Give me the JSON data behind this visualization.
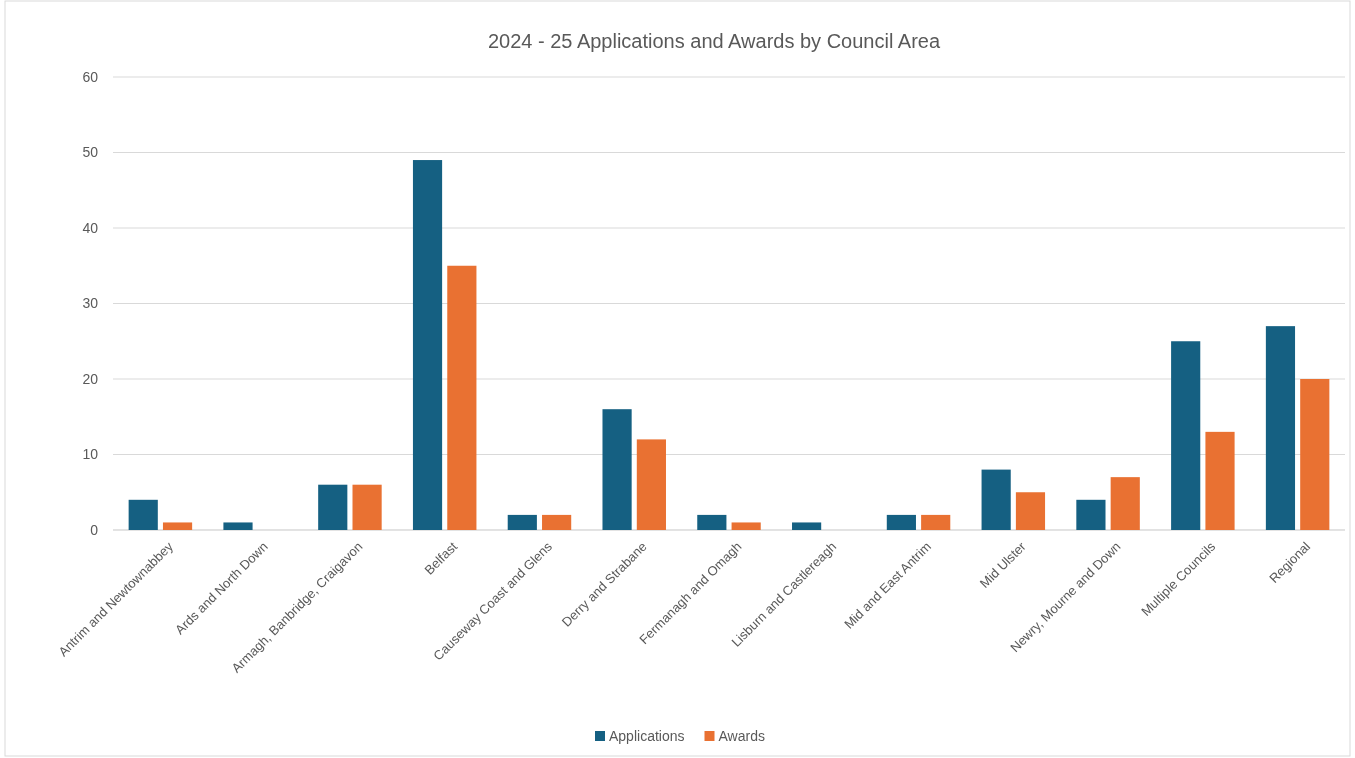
{
  "chart_data": {
    "type": "bar",
    "title": "2024 - 25 Applications and Awards by Council Area",
    "categories": [
      "Antrim and Newtownabbey",
      "Ards and North Down",
      "Armagh, Banbridge, Craigavon",
      "Belfast",
      "Causeway Coast and Glens",
      "Derry and Strabane",
      "Fermanagh and Omagh",
      "Lisburn and Castlereagh",
      "Mid and East Antrim",
      "Mid Ulster",
      "Newry, Mourne and Down",
      "Multiple Councils",
      "Regional"
    ],
    "series": [
      {
        "name": "Applications",
        "color": "#156082",
        "values": [
          4,
          1,
          6,
          49,
          2,
          16,
          2,
          1,
          2,
          8,
          4,
          25,
          27
        ]
      },
      {
        "name": "Awards",
        "color": "#e97132",
        "values": [
          1,
          0,
          6,
          35,
          2,
          12,
          1,
          0,
          2,
          5,
          7,
          13,
          20
        ]
      }
    ],
    "ylim": [
      0,
      60
    ],
    "yticks": [
      0,
      10,
      20,
      30,
      40,
      50,
      60
    ],
    "grid": "y",
    "legend": "bottom"
  }
}
